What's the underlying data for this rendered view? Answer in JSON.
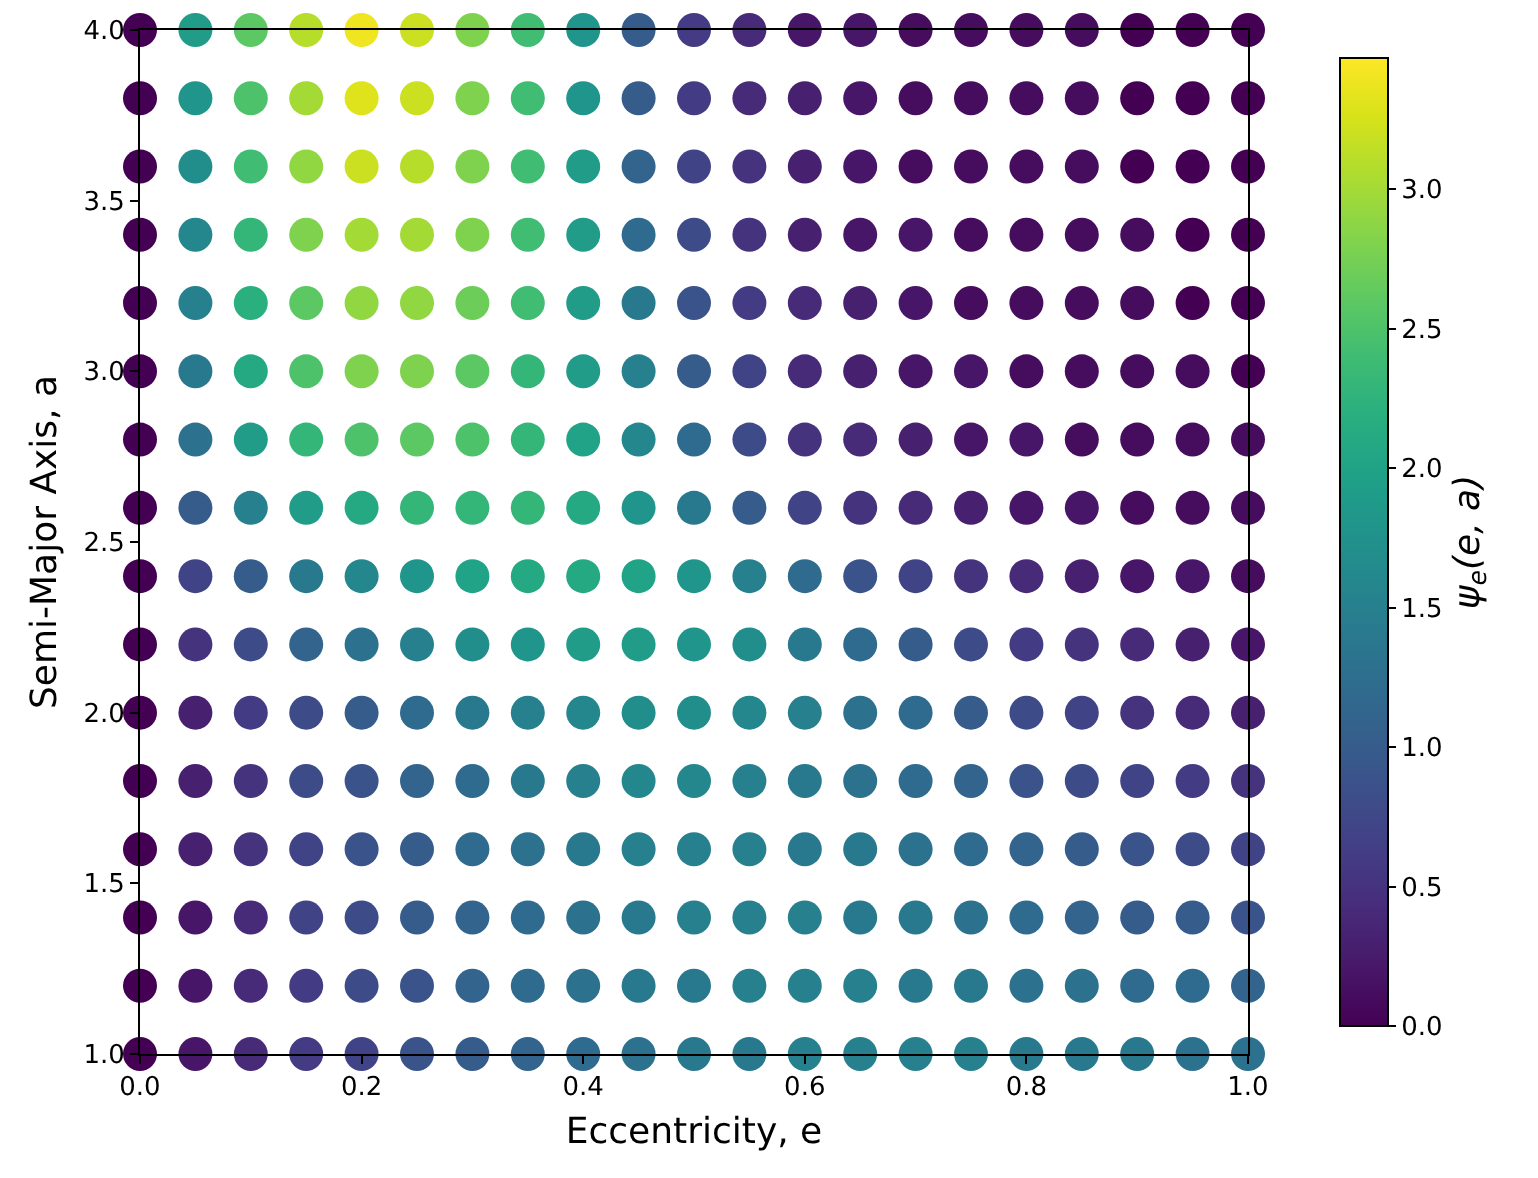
{
  "chart_data": {
    "type": "scatter",
    "xlabel": "Eccentricity, e",
    "ylabel": "Semi-Major Axis, a",
    "clabel": "ψ$_{e}$(e, a)",
    "x": [
      0,
      0.05,
      0.1,
      0.15,
      0.2,
      0.25,
      0.3,
      0.35,
      0.4,
      0.45,
      0.5,
      0.55,
      0.6,
      0.65,
      0.7,
      0.75,
      0.8,
      0.85,
      0.9,
      0.95,
      1,
      0,
      0.05,
      0.1,
      0.15,
      0.2,
      0.25,
      0.3,
      0.35,
      0.4,
      0.45,
      0.5,
      0.55,
      0.6,
      0.65,
      0.7,
      0.75,
      0.8,
      0.85,
      0.9,
      0.95,
      1,
      0,
      0.05,
      0.1,
      0.15,
      0.2,
      0.25,
      0.3,
      0.35,
      0.4,
      0.45,
      0.5,
      0.55,
      0.6,
      0.65,
      0.7,
      0.75,
      0.8,
      0.85,
      0.9,
      0.95,
      1,
      0,
      0.05,
      0.1,
      0.15,
      0.2,
      0.25,
      0.3,
      0.35,
      0.4,
      0.45,
      0.5,
      0.55,
      0.6,
      0.65,
      0.7,
      0.75,
      0.8,
      0.85,
      0.9,
      0.95,
      1,
      0,
      0.05,
      0.1,
      0.15,
      0.2,
      0.25,
      0.3,
      0.35,
      0.4,
      0.45,
      0.5,
      0.55,
      0.6,
      0.65,
      0.7,
      0.75,
      0.8,
      0.85,
      0.9,
      0.95,
      1,
      0,
      0.05,
      0.1,
      0.15,
      0.2,
      0.25,
      0.3,
      0.35,
      0.4,
      0.45,
      0.5,
      0.55,
      0.6,
      0.65,
      0.7,
      0.75,
      0.8,
      0.85,
      0.9,
      0.95,
      1,
      0,
      0.05,
      0.1,
      0.15,
      0.2,
      0.25,
      0.3,
      0.35,
      0.4,
      0.45,
      0.5,
      0.55,
      0.6,
      0.65,
      0.7,
      0.75,
      0.8,
      0.85,
      0.9,
      0.95,
      1,
      0,
      0.05,
      0.1,
      0.15,
      0.2,
      0.25,
      0.3,
      0.35,
      0.4,
      0.45,
      0.5,
      0.55,
      0.6,
      0.65,
      0.7,
      0.75,
      0.8,
      0.85,
      0.9,
      0.95,
      1,
      0,
      0.05,
      0.1,
      0.15,
      0.2,
      0.25,
      0.3,
      0.35,
      0.4,
      0.45,
      0.5,
      0.55,
      0.6,
      0.65,
      0.7,
      0.75,
      0.8,
      0.85,
      0.9,
      0.95,
      1,
      0,
      0.05,
      0.1,
      0.15,
      0.2,
      0.25,
      0.3,
      0.35,
      0.4,
      0.45,
      0.5,
      0.55,
      0.6,
      0.65,
      0.7,
      0.75,
      0.8,
      0.85,
      0.9,
      0.95,
      1,
      0,
      0.05,
      0.1,
      0.15,
      0.2,
      0.25,
      0.3,
      0.35,
      0.4,
      0.45,
      0.5,
      0.55,
      0.6,
      0.65,
      0.7,
      0.75,
      0.8,
      0.85,
      0.9,
      0.95,
      1,
      0,
      0.05,
      0.1,
      0.15,
      0.2,
      0.25,
      0.3,
      0.35,
      0.4,
      0.45,
      0.5,
      0.55,
      0.6,
      0.65,
      0.7,
      0.75,
      0.8,
      0.85,
      0.9,
      0.95,
      1,
      0,
      0.05,
      0.1,
      0.15,
      0.2,
      0.25,
      0.3,
      0.35,
      0.4,
      0.45,
      0.5,
      0.55,
      0.6,
      0.65,
      0.7,
      0.75,
      0.8,
      0.85,
      0.9,
      0.95,
      1,
      0,
      0.05,
      0.1,
      0.15,
      0.2,
      0.25,
      0.3,
      0.35,
      0.4,
      0.45,
      0.5,
      0.55,
      0.6,
      0.65,
      0.7,
      0.75,
      0.8,
      0.85,
      0.9,
      0.95,
      1,
      0,
      0.05,
      0.1,
      0.15,
      0.2,
      0.25,
      0.3,
      0.35,
      0.4,
      0.45,
      0.5,
      0.55,
      0.6,
      0.65,
      0.7,
      0.75,
      0.8,
      0.85,
      0.9,
      0.95,
      1,
      0,
      0.05,
      0.1,
      0.15,
      0.2,
      0.25,
      0.3,
      0.35,
      0.4,
      0.45,
      0.5,
      0.55,
      0.6,
      0.65,
      0.7,
      0.75,
      0.8,
      0.85,
      0.9,
      0.95,
      1
    ],
    "values": [
      1,
      1,
      1,
      1,
      1,
      1,
      1,
      1,
      1,
      1,
      1,
      1,
      1,
      1,
      1,
      1,
      1,
      1,
      1,
      1,
      1,
      1.2,
      1.2,
      1.2,
      1.2,
      1.2,
      1.2,
      1.2,
      1.2,
      1.2,
      1.2,
      1.2,
      1.2,
      1.2,
      1.2,
      1.2,
      1.2,
      1.2,
      1.2,
      1.2,
      1.2,
      1.2,
      1.4,
      1.4,
      1.4,
      1.4,
      1.4,
      1.4,
      1.4,
      1.4,
      1.4,
      1.4,
      1.4,
      1.4,
      1.4,
      1.4,
      1.4,
      1.4,
      1.4,
      1.4,
      1.4,
      1.4,
      1.4,
      1.6,
      1.6,
      1.6,
      1.6,
      1.6,
      1.6,
      1.6,
      1.6,
      1.6,
      1.6,
      1.6,
      1.6,
      1.6,
      1.6,
      1.6,
      1.6,
      1.6,
      1.6,
      1.6,
      1.6,
      1.6,
      1.8,
      1.8,
      1.8,
      1.8,
      1.8,
      1.8,
      1.8,
      1.8,
      1.8,
      1.8,
      1.8,
      1.8,
      1.8,
      1.8,
      1.8,
      1.8,
      1.8,
      1.8,
      1.8,
      1.8,
      1.8,
      2,
      2,
      2,
      2,
      2,
      2,
      2,
      2,
      2,
      2,
      2,
      2,
      2,
      2,
      2,
      2,
      2,
      2,
      2,
      2,
      2,
      2.2,
      2.2,
      2.2,
      2.2,
      2.2,
      2.2,
      2.2,
      2.2,
      2.2,
      2.2,
      2.2,
      2.2,
      2.2,
      2.2,
      2.2,
      2.2,
      2.2,
      2.2,
      2.2,
      2.2,
      2.2,
      2.4,
      2.4,
      2.4,
      2.4,
      2.4,
      2.4,
      2.4,
      2.4,
      2.4,
      2.4,
      2.4,
      2.4,
      2.4,
      2.4,
      2.4,
      2.4,
      2.4,
      2.4,
      2.4,
      2.4,
      2.4,
      2.6,
      2.6,
      2.6,
      2.6,
      2.6,
      2.6,
      2.6,
      2.6,
      2.6,
      2.6,
      2.6,
      2.6,
      2.6,
      2.6,
      2.6,
      2.6,
      2.6,
      2.6,
      2.6,
      2.6,
      2.6,
      2.8,
      2.8,
      2.8,
      2.8,
      2.8,
      2.8,
      2.8,
      2.8,
      2.8,
      2.8,
      2.8,
      2.8,
      2.8,
      2.8,
      2.8,
      2.8,
      2.8,
      2.8,
      2.8,
      2.8,
      2.8,
      3,
      3,
      3,
      3,
      3,
      3,
      3,
      3,
      3,
      3,
      3,
      3,
      3,
      3,
      3,
      3,
      3,
      3,
      3,
      3,
      3,
      3.2,
      3.2,
      3.2,
      3.2,
      3.2,
      3.2,
      3.2,
      3.2,
      3.2,
      3.2,
      3.2,
      3.2,
      3.2,
      3.2,
      3.2,
      3.2,
      3.2,
      3.2,
      3.2,
      3.2,
      3.2,
      3.4,
      3.4,
      3.4,
      3.4,
      3.4,
      3.4,
      3.4,
      3.4,
      3.4,
      3.4,
      3.4,
      3.4,
      3.4,
      3.4,
      3.4,
      3.4,
      3.4,
      3.4,
      3.4,
      3.4,
      3.4,
      3.6,
      3.6,
      3.6,
      3.6,
      3.6,
      3.6,
      3.6,
      3.6,
      3.6,
      3.6,
      3.6,
      3.6,
      3.6,
      3.6,
      3.6,
      3.6,
      3.6,
      3.6,
      3.6,
      3.6,
      3.6,
      3.8,
      3.8,
      3.8,
      3.8,
      3.8,
      3.8,
      3.8,
      3.8,
      3.8,
      3.8,
      3.8,
      3.8,
      3.8,
      3.8,
      3.8,
      3.8,
      3.8,
      3.8,
      3.8,
      3.8,
      3.8,
      4,
      4,
      4,
      4,
      4,
      4,
      4,
      4,
      4,
      4,
      4,
      4,
      4,
      4,
      4,
      4,
      4,
      4,
      4,
      4,
      4
    ],
    "cvalues": [
      0,
      0.2,
      0.4,
      0.6,
      0.7,
      0.9,
      1.0,
      1.1,
      1.2,
      1.3,
      1.4,
      1.4,
      1.5,
      1.5,
      1.5,
      1.5,
      1.4,
      1.4,
      1.4,
      1.3,
      1.3,
      0,
      0.2,
      0.4,
      0.6,
      0.8,
      0.9,
      1.1,
      1.2,
      1.3,
      1.4,
      1.4,
      1.5,
      1.5,
      1.5,
      1.4,
      1.4,
      1.3,
      1.3,
      1.2,
      1.2,
      1.1,
      0,
      0.2,
      0.4,
      0.7,
      0.8,
      1.0,
      1.1,
      1.2,
      1.3,
      1.4,
      1.5,
      1.5,
      1.5,
      1.4,
      1.4,
      1.3,
      1.2,
      1.1,
      1.0,
      1.0,
      0.9,
      0,
      0.3,
      0.5,
      0.7,
      0.9,
      1.0,
      1.2,
      1.3,
      1.4,
      1.5,
      1.5,
      1.5,
      1.4,
      1.4,
      1.3,
      1.2,
      1.1,
      1.0,
      0.9,
      0.8,
      0.7,
      0,
      0.3,
      0.5,
      0.8,
      0.9,
      1.1,
      1.2,
      1.4,
      1.5,
      1.6,
      1.6,
      1.5,
      1.4,
      1.3,
      1.2,
      1.1,
      0.9,
      0.8,
      0.7,
      0.6,
      0.5,
      0,
      0.3,
      0.6,
      0.8,
      1.0,
      1.2,
      1.4,
      1.5,
      1.6,
      1.7,
      1.7,
      1.6,
      1.5,
      1.3,
      1.2,
      1.0,
      0.8,
      0.7,
      0.5,
      0.4,
      0.3,
      0,
      0.5,
      0.8,
      1.1,
      1.3,
      1.5,
      1.7,
      1.8,
      1.9,
      1.9,
      1.8,
      1.7,
      1.4,
      1.2,
      1.0,
      0.8,
      0.6,
      0.5,
      0.4,
      0.3,
      0.2,
      0,
      0.7,
      1.0,
      1.4,
      1.6,
      1.8,
      2.0,
      2.1,
      2.1,
      2.0,
      1.8,
      1.5,
      1.2,
      0.9,
      0.7,
      0.5,
      0.4,
      0.3,
      0.2,
      0.2,
      0.1,
      0,
      1.0,
      1.5,
      1.9,
      2.1,
      2.3,
      2.3,
      2.3,
      2.1,
      1.8,
      1.4,
      1.0,
      0.7,
      0.5,
      0.4,
      0.3,
      0.2,
      0.2,
      0.1,
      0.1,
      0.1,
      0,
      1.3,
      1.9,
      2.3,
      2.5,
      2.6,
      2.5,
      2.3,
      2.0,
      1.6,
      1.2,
      0.8,
      0.5,
      0.4,
      0.3,
      0.2,
      0.2,
      0.1,
      0.1,
      0.1,
      0.1,
      0,
      1.4,
      2.1,
      2.5,
      2.8,
      2.8,
      2.6,
      2.3,
      1.9,
      1.5,
      1.0,
      0.7,
      0.4,
      0.3,
      0.2,
      0.2,
      0.1,
      0.1,
      0.1,
      0.1,
      0.0,
      0,
      1.5,
      2.2,
      2.6,
      2.9,
      2.9,
      2.7,
      2.4,
      1.9,
      1.4,
      0.9,
      0.6,
      0.4,
      0.3,
      0.2,
      0.1,
      0.1,
      0.1,
      0.1,
      0.0,
      0.0,
      0,
      1.6,
      2.3,
      2.8,
      3.0,
      3.0,
      2.8,
      2.4,
      1.9,
      1.2,
      0.8,
      0.5,
      0.3,
      0.2,
      0.2,
      0.1,
      0.1,
      0.1,
      0.1,
      0.0,
      0.0,
      0,
      1.7,
      2.4,
      2.9,
      3.2,
      3.1,
      2.8,
      2.4,
      1.9,
      1.1,
      0.7,
      0.5,
      0.3,
      0.2,
      0.1,
      0.1,
      0.1,
      0.1,
      0.0,
      0.0,
      0.0,
      0,
      1.8,
      2.5,
      3.0,
      3.3,
      3.2,
      2.8,
      2.4,
      1.8,
      1.0,
      0.6,
      0.4,
      0.3,
      0.2,
      0.1,
      0.1,
      0.1,
      0.1,
      0.0,
      0.0,
      0.0,
      0,
      1.9,
      2.6,
      3.1,
      3.4,
      3.2,
      2.8,
      2.4,
      1.8,
      1.0,
      0.6,
      0.4,
      0.2,
      0.2,
      0.1,
      0.1,
      0.1,
      0.1,
      0.0,
      0.0,
      0.0
    ],
    "xlim": [
      0,
      1
    ],
    "ylim": [
      1,
      4
    ],
    "xticks": [
      {
        "value": 0,
        "label": "0.0"
      },
      0.2,
      0.4,
      0.6,
      0.8,
      {
        "value": 1,
        "label": "1.0"
      }
    ],
    "yticks": [
      {
        "value": 1,
        "label": "1.0"
      },
      1.5,
      {
        "value": 2,
        "label": "2.0"
      },
      2.5,
      {
        "value": 3,
        "label": "3.0"
      },
      3.5,
      {
        "value": 4,
        "label": "4.0"
      }
    ],
    "clim": [
      0,
      3.47
    ],
    "cticks": [
      {
        "value": 0,
        "label": "0.0"
      },
      0.5,
      {
        "value": 1,
        "label": "1.0"
      },
      1.5,
      {
        "value": 2,
        "label": "2.0"
      },
      2.5,
      {
        "value": 3,
        "label": "3.0"
      }
    ],
    "grid": false,
    "marker": "circle"
  }
}
